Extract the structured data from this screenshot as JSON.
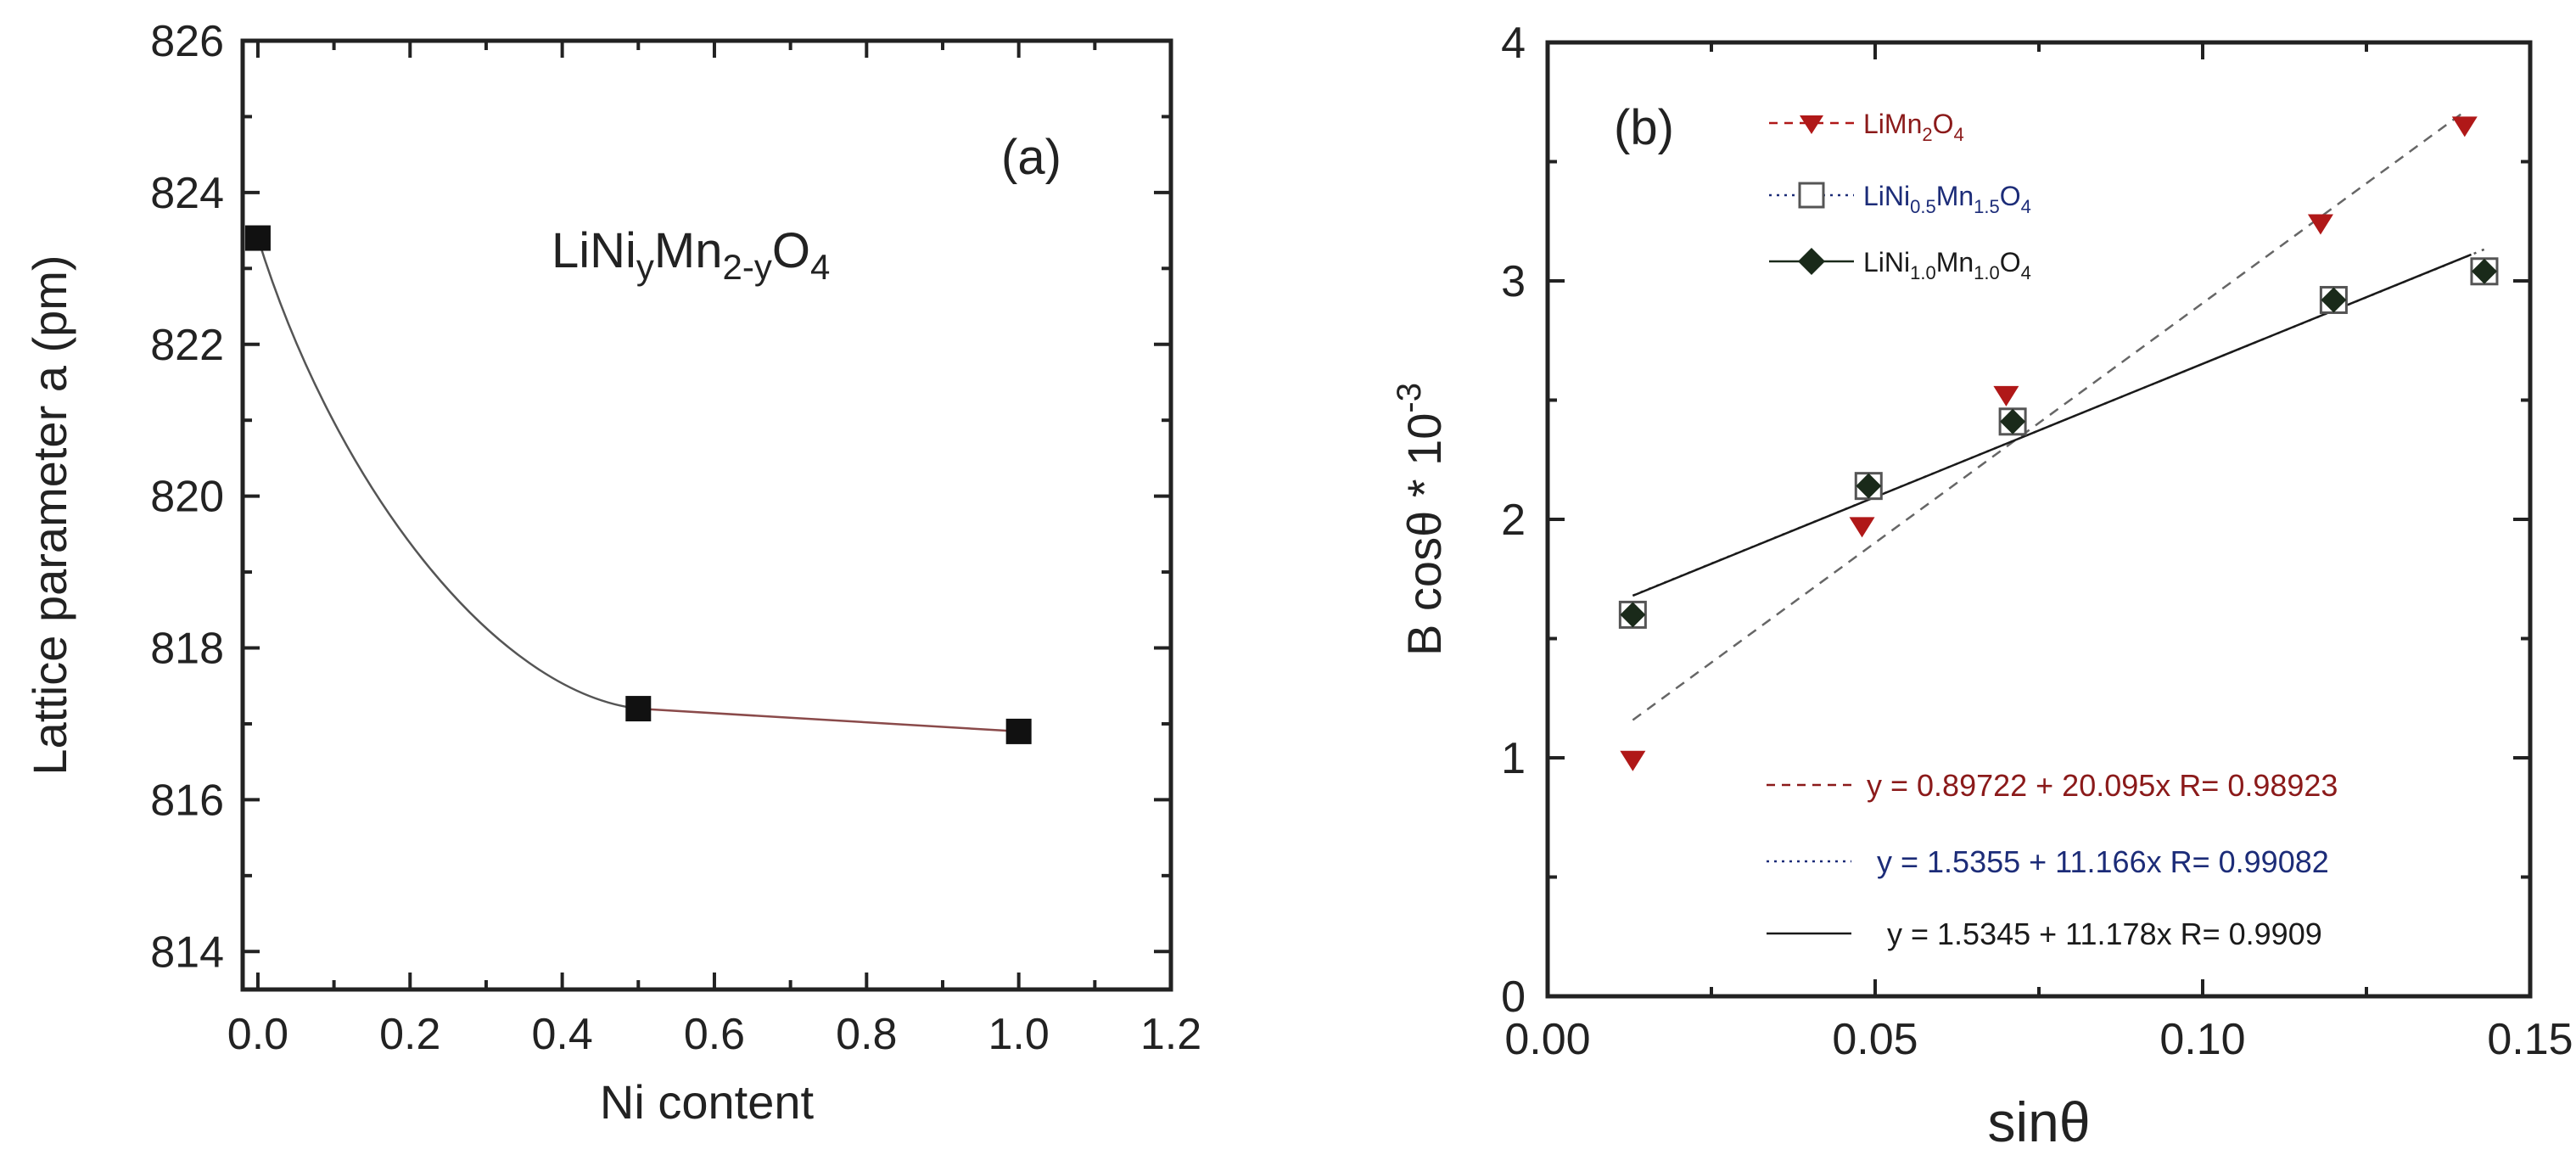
{
  "chart_data": [
    {
      "panel": "(a)",
      "type": "line",
      "title": "",
      "annotation": {
        "base": "LiNi",
        "s1": "y",
        "mid": "Mn",
        "s2": "2-y",
        "end": "O",
        "s3": "4"
      },
      "xlabel": "Ni content",
      "ylabel": "Lattice parameter a (pm)",
      "xlim": [
        -0.02,
        1.2
      ],
      "ylim": [
        813.5,
        826
      ],
      "xticks": [
        "0.0",
        "0.2",
        "0.4",
        "0.6",
        "0.8",
        "1.0",
        "1.2"
      ],
      "yticks": [
        "814",
        "816",
        "818",
        "820",
        "822",
        "824",
        "826"
      ],
      "series": [
        {
          "name": "LiNiyMn2-yO4",
          "x": [
            0.0,
            0.5,
            1.0
          ],
          "y": [
            823.4,
            817.2,
            816.9
          ],
          "color": "#111111",
          "marker": "square"
        }
      ],
      "curve_color_dark": "#555555",
      "curve_color_tail": "#8a4a4a"
    },
    {
      "panel": "(b)",
      "type": "scatter",
      "xlabel": "sinθ",
      "ylabel": "B cosθ * 10",
      "ylabel_exp": "-3",
      "xlim": [
        0.0,
        0.15
      ],
      "ylim": [
        0,
        4
      ],
      "xticks": [
        "0.00",
        "0.05",
        "0.10",
        "0.15"
      ],
      "yticks": [
        "0",
        "1",
        "2",
        "3",
        "4"
      ],
      "series": [
        {
          "name": "LiMn2O4",
          "legend": {
            "a": "LiMn",
            "b": "2",
            "c": "O",
            "d": "4"
          },
          "x": [
            0.013,
            0.048,
            0.07,
            0.118,
            0.14
          ],
          "y": [
            0.99,
            1.97,
            2.52,
            3.24,
            3.65
          ],
          "color": "#b01818",
          "marker": "triangle-down",
          "fit": {
            "intercept": 0.89722,
            "slope": 20.095,
            "x_range": [
              0.013,
              0.14
            ],
            "style": "dashed"
          }
        },
        {
          "name": "LiNi0.5Mn1.5O4",
          "legend": {
            "a": "LiNi",
            "b": "0.5",
            "c": "Mn",
            "d": "1.5",
            "e": "O",
            "f": "4"
          },
          "x": [
            0.013,
            0.049,
            0.071,
            0.12,
            0.143
          ],
          "y": [
            1.6,
            2.14,
            2.41,
            2.92,
            3.04
          ],
          "color": "#1c2c78",
          "marker": "open-square",
          "fit": {
            "intercept": 1.5355,
            "slope": 11.166,
            "x_range": [
              0.013,
              0.143
            ],
            "style": "dotted"
          }
        },
        {
          "name": "LiNi1.0Mn1.0O4",
          "legend": {
            "a": "LiNi",
            "b": "1.0",
            "c": "Mn",
            "d": "1.0",
            "e": "O",
            "f": "4"
          },
          "x": [
            0.013,
            0.049,
            0.071,
            0.12,
            0.143
          ],
          "y": [
            1.6,
            2.14,
            2.41,
            2.92,
            3.04
          ],
          "color": "#1a2a1a",
          "marker": "diamond",
          "fit": {
            "intercept": 1.5345,
            "slope": 11.178,
            "x_range": [
              0.013,
              0.141
            ],
            "style": "solid"
          }
        }
      ],
      "fit_labels": [
        {
          "text": "y = 0.89722 + 20.095x   R= 0.98923",
          "color": "#8b1a1a"
        },
        {
          "text": "y = 1.5355 + 11.166x   R= 0.99082",
          "color": "#1c2c78"
        },
        {
          "text": "y = 1.5345 + 11.178x   R= 0.9909",
          "color": "#1a1a1a"
        }
      ]
    }
  ]
}
